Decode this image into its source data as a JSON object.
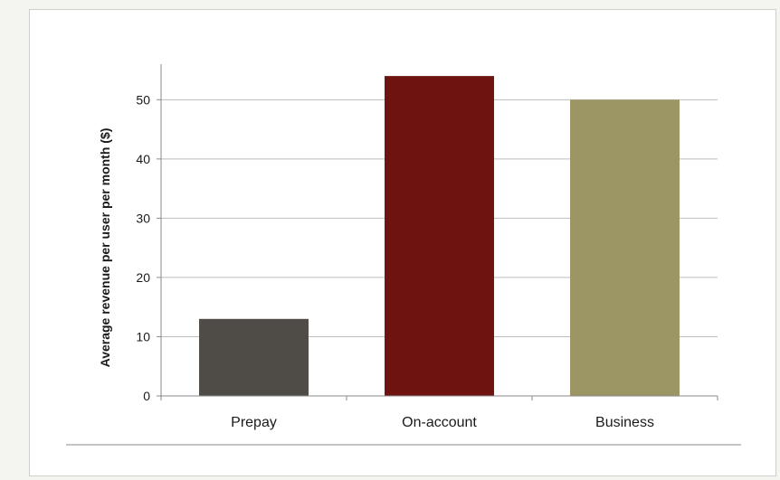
{
  "chart_data": {
    "type": "bar",
    "categories": [
      "Prepay",
      "On-account",
      "Business"
    ],
    "values": [
      13,
      54,
      50
    ],
    "bar_colors": [
      "#4f4b46",
      "#6e130f",
      "#9c9664"
    ],
    "title": "",
    "xlabel": "",
    "ylabel": "Average revenue per user per month ($)",
    "ylim": [
      0,
      56
    ],
    "yticks": [
      0,
      10,
      20,
      30,
      40,
      50
    ],
    "grid": "horizontal",
    "legend": "none"
  }
}
